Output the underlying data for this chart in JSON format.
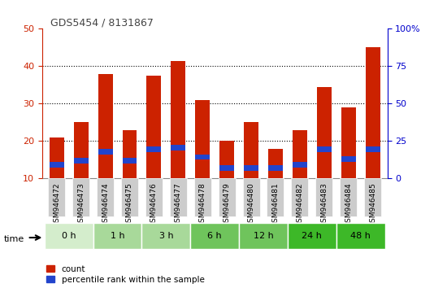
{
  "title": "GDS5454 / 8131867",
  "samples": [
    "GSM946472",
    "GSM946473",
    "GSM946474",
    "GSM946475",
    "GSM946476",
    "GSM946477",
    "GSM946478",
    "GSM946479",
    "GSM946480",
    "GSM946481",
    "GSM946482",
    "GSM946483",
    "GSM946484",
    "GSM946485"
  ],
  "red_values": [
    21,
    25,
    38,
    23,
    37.5,
    41.5,
    31,
    20,
    25,
    18,
    23,
    34.5,
    29,
    45
  ],
  "blue_values": [
    1.5,
    1.5,
    1.5,
    1.5,
    1.5,
    1.5,
    1.5,
    1.5,
    1.5,
    1.5,
    1.5,
    1.5,
    1.5,
    1.5
  ],
  "blue_bottoms": [
    13,
    14,
    16.5,
    14,
    17,
    17.5,
    15,
    12,
    12,
    12,
    13,
    17,
    14.5,
    17
  ],
  "time_groups": [
    {
      "label": "0 h",
      "start": 0,
      "end": 2,
      "color": "#d4edcc"
    },
    {
      "label": "1 h",
      "start": 2,
      "end": 4,
      "color": "#a8d99a"
    },
    {
      "label": "3 h",
      "start": 4,
      "end": 6,
      "color": "#a8d99a"
    },
    {
      "label": "6 h",
      "start": 6,
      "end": 8,
      "color": "#6fc45c"
    },
    {
      "label": "12 h",
      "start": 8,
      "end": 10,
      "color": "#6fc45c"
    },
    {
      "label": "24 h",
      "start": 10,
      "end": 12,
      "color": "#3db828"
    },
    {
      "label": "48 h",
      "start": 12,
      "end": 14,
      "color": "#3db828"
    }
  ],
  "ylim_left": [
    10,
    50
  ],
  "ylim_right": [
    0,
    100
  ],
  "yticks_left": [
    10,
    20,
    30,
    40,
    50
  ],
  "yticks_right": [
    0,
    25,
    50,
    75,
    100
  ],
  "bar_color_red": "#cc2200",
  "bar_color_blue": "#2244cc",
  "bar_width": 0.6,
  "legend_count": "count",
  "legend_pct": "percentile rank within the sample",
  "time_label": "time",
  "bg_plot": "#ffffff",
  "bg_xticklabel": "#cccccc",
  "grid_color": "#000000",
  "title_color": "#444444"
}
